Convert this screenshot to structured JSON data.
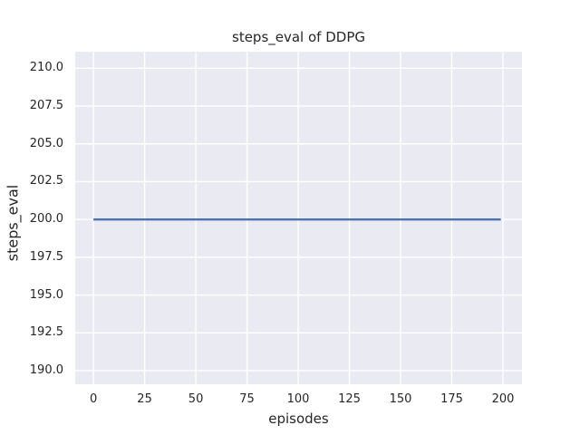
{
  "chart_data": {
    "type": "line",
    "title": "steps_eval of DDPG",
    "xlabel": "episodes",
    "ylabel": "steps_eval",
    "xticks": [
      0,
      25,
      50,
      75,
      100,
      125,
      150,
      175,
      200
    ],
    "xtick_labels": [
      "0",
      "25",
      "50",
      "75",
      "100",
      "125",
      "150",
      "175",
      "200"
    ],
    "yticks": [
      190.0,
      192.5,
      195.0,
      197.5,
      200.0,
      202.5,
      205.0,
      207.5,
      210.0
    ],
    "ytick_labels": [
      "190.0",
      "192.5",
      "195.0",
      "197.5",
      "200.0",
      "202.5",
      "205.0",
      "207.5",
      "210.0"
    ],
    "xlim": [
      -8.9,
      209.3
    ],
    "ylim": [
      189.1,
      211.1
    ],
    "grid": true,
    "legend": false,
    "series": [
      {
        "name": "steps_eval",
        "color": "#4c72b0",
        "x": [
          0,
          199
        ],
        "y": [
          200,
          200
        ]
      }
    ],
    "style": {
      "figure_bg": "#ffffff",
      "axes_bg": "#eaeaf2",
      "grid_color": "#ffffff",
      "text_color": "#262626"
    }
  }
}
